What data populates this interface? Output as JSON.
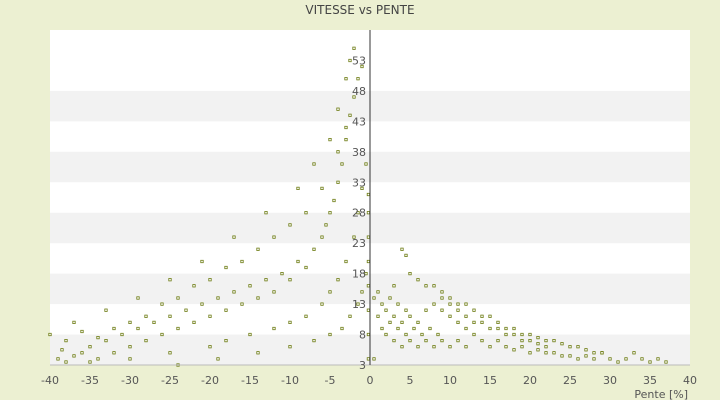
{
  "chart_data": {
    "type": "scatter",
    "title": "VITESSE vs PENTE",
    "xlabel": "Pente [%]",
    "ylabel": "",
    "xlim": [
      -40,
      40
    ],
    "ylim": [
      3,
      58
    ],
    "x_ticks": [
      -40,
      -35,
      -30,
      -25,
      -20,
      -15,
      -10,
      -5,
      0,
      5,
      10,
      15,
      20,
      25,
      30,
      35,
      40
    ],
    "y_ticks": [
      3,
      8,
      13,
      18,
      23,
      28,
      33,
      38,
      43,
      48,
      53
    ],
    "y_axis_position": "at x = 0",
    "grid": "horizontal bands",
    "marker_color": "#6b7a10",
    "series": [
      {
        "points": [
          [
            -39,
            4
          ],
          [
            -38.5,
            5.5
          ],
          [
            -38,
            3.5
          ],
          [
            -37,
            4.5
          ],
          [
            -36,
            5
          ],
          [
            -35,
            6
          ],
          [
            -34,
            4
          ],
          [
            -33,
            7
          ],
          [
            -32,
            5
          ],
          [
            -31,
            8
          ],
          [
            -30,
            6
          ],
          [
            -29,
            9
          ],
          [
            -28,
            7
          ],
          [
            -27,
            10
          ],
          [
            -26,
            8
          ],
          [
            -25,
            11
          ],
          [
            -24,
            9
          ],
          [
            -23,
            12
          ],
          [
            -22,
            10
          ],
          [
            -21,
            13
          ],
          [
            -20,
            11
          ],
          [
            -19,
            14
          ],
          [
            -18,
            12
          ],
          [
            -17,
            15
          ],
          [
            -16,
            13
          ],
          [
            -15,
            16
          ],
          [
            -14,
            14
          ],
          [
            -13,
            17
          ],
          [
            -12,
            15
          ],
          [
            -11,
            18
          ],
          [
            -10,
            17
          ],
          [
            -9,
            20
          ],
          [
            -8,
            19
          ],
          [
            -7,
            22
          ],
          [
            -6,
            24
          ],
          [
            -5.5,
            26
          ],
          [
            -5,
            28
          ],
          [
            -4.5,
            30
          ],
          [
            -4,
            33
          ],
          [
            -3.5,
            36
          ],
          [
            -3,
            40
          ],
          [
            -2.5,
            44
          ],
          [
            -2,
            47
          ],
          [
            -1.5,
            50
          ],
          [
            -1,
            52
          ],
          [
            -38,
            7
          ],
          [
            -36,
            8.5
          ],
          [
            -34,
            7.5
          ],
          [
            -32,
            9
          ],
          [
            -30,
            10
          ],
          [
            -28,
            11
          ],
          [
            -26,
            13
          ],
          [
            -24,
            14
          ],
          [
            -22,
            16
          ],
          [
            -20,
            17
          ],
          [
            -18,
            19
          ],
          [
            -16,
            20
          ],
          [
            -14,
            22
          ],
          [
            -12,
            24
          ],
          [
            -10,
            26
          ],
          [
            -8,
            28
          ],
          [
            -6,
            32
          ],
          [
            -4,
            38
          ],
          [
            -3,
            42
          ],
          [
            -35,
            3.5
          ],
          [
            -30,
            4
          ],
          [
            -25,
            5
          ],
          [
            -20,
            6
          ],
          [
            -18,
            7
          ],
          [
            -15,
            8
          ],
          [
            -12,
            9
          ],
          [
            -10,
            10
          ],
          [
            -8,
            11
          ],
          [
            -6,
            13
          ],
          [
            -5,
            15
          ],
          [
            -4,
            17
          ],
          [
            -3,
            20
          ],
          [
            -2,
            24
          ],
          [
            -1.5,
            28
          ],
          [
            -1,
            32
          ],
          [
            -0.5,
            36
          ],
          [
            -40,
            8
          ],
          [
            -37,
            10
          ],
          [
            -33,
            12
          ],
          [
            -29,
            14
          ],
          [
            -25,
            17
          ],
          [
            -21,
            20
          ],
          [
            -17,
            24
          ],
          [
            -13,
            28
          ],
          [
            -9,
            32
          ],
          [
            -7,
            36
          ],
          [
            -5,
            40
          ],
          [
            -4,
            45
          ],
          [
            -3,
            50
          ],
          [
            -2.5,
            53
          ],
          [
            -2,
            55
          ],
          [
            -24,
            3
          ],
          [
            -19,
            4
          ],
          [
            -14,
            5
          ],
          [
            -10,
            6
          ],
          [
            -7,
            7
          ],
          [
            -5,
            8
          ],
          [
            -3.5,
            9
          ],
          [
            -2.5,
            11
          ],
          [
            -1.5,
            13
          ],
          [
            -1,
            15
          ],
          [
            -0.5,
            18
          ],
          [
            -0.2,
            4
          ],
          [
            -0.2,
            8
          ],
          [
            -0.2,
            12
          ],
          [
            -0.2,
            16
          ],
          [
            -0.2,
            20
          ],
          [
            -0.2,
            24
          ],
          [
            -0.2,
            28
          ],
          [
            -0.2,
            31
          ],
          [
            0.5,
            4
          ],
          [
            0.5,
            14
          ],
          [
            1,
            11
          ],
          [
            1,
            15
          ],
          [
            1.5,
            9
          ],
          [
            1.5,
            13
          ],
          [
            2,
            8
          ],
          [
            2,
            12
          ],
          [
            2.5,
            10
          ],
          [
            2.5,
            14
          ],
          [
            3,
            7
          ],
          [
            3,
            11
          ],
          [
            3.5,
            9
          ],
          [
            3.5,
            13
          ],
          [
            4,
            6
          ],
          [
            4,
            10
          ],
          [
            4.5,
            8
          ],
          [
            4.5,
            12
          ],
          [
            5,
            7
          ],
          [
            5,
            11
          ],
          [
            5.5,
            9
          ],
          [
            6,
            6
          ],
          [
            6,
            10
          ],
          [
            6.5,
            8
          ],
          [
            7,
            7
          ],
          [
            7,
            12
          ],
          [
            7.5,
            9
          ],
          [
            8,
            6
          ],
          [
            8,
            13
          ],
          [
            8.5,
            8
          ],
          [
            9,
            7
          ],
          [
            9,
            12
          ],
          [
            10,
            6
          ],
          [
            10,
            11
          ],
          [
            11,
            7
          ],
          [
            11,
            10
          ],
          [
            12,
            6
          ],
          [
            12,
            9
          ],
          [
            13,
            8
          ],
          [
            14,
            7
          ],
          [
            15,
            6
          ],
          [
            16,
            7
          ],
          [
            17,
            6
          ],
          [
            18,
            5.5
          ],
          [
            19,
            6
          ],
          [
            20,
            5
          ],
          [
            21,
            5.5
          ],
          [
            22,
            5
          ],
          [
            23,
            5
          ],
          [
            24,
            4.5
          ],
          [
            25,
            4.5
          ],
          [
            26,
            4
          ],
          [
            27,
            4.5
          ],
          [
            28,
            4
          ],
          [
            29,
            5
          ],
          [
            30,
            4
          ],
          [
            31,
            3.5
          ],
          [
            32,
            4
          ],
          [
            33,
            5
          ],
          [
            34,
            4
          ],
          [
            35,
            3.5
          ],
          [
            36,
            4
          ],
          [
            37,
            3.5
          ],
          [
            3,
            16
          ],
          [
            4,
            22
          ],
          [
            4.5,
            21
          ],
          [
            5,
            18
          ],
          [
            6,
            17
          ],
          [
            7,
            16
          ],
          [
            8,
            16
          ],
          [
            9,
            15
          ],
          [
            10,
            14
          ],
          [
            11,
            13
          ],
          [
            12,
            13
          ],
          [
            13,
            12
          ],
          [
            14,
            11
          ],
          [
            15,
            11
          ],
          [
            16,
            10
          ],
          [
            17,
            9
          ],
          [
            18,
            9
          ],
          [
            19,
            8
          ],
          [
            20,
            8
          ],
          [
            21,
            7.5
          ],
          [
            22,
            7
          ],
          [
            23,
            7
          ],
          [
            24,
            6.5
          ],
          [
            25,
            6
          ],
          [
            26,
            6
          ],
          [
            27,
            5.5
          ],
          [
            28,
            5
          ],
          [
            29,
            5
          ],
          [
            9,
            14
          ],
          [
            10,
            13
          ],
          [
            11,
            12
          ],
          [
            12,
            11
          ],
          [
            13,
            10
          ],
          [
            14,
            10
          ],
          [
            15,
            9
          ],
          [
            16,
            9
          ],
          [
            17,
            8
          ],
          [
            18,
            8
          ],
          [
            19,
            7
          ],
          [
            20,
            7
          ],
          [
            21,
            6.5
          ],
          [
            22,
            6
          ]
        ]
      }
    ]
  }
}
